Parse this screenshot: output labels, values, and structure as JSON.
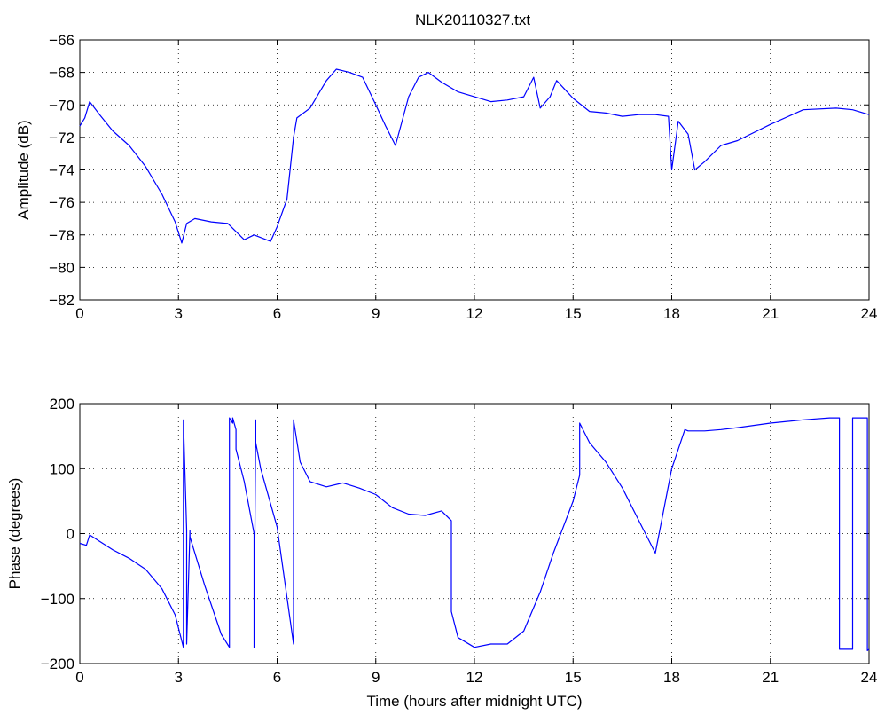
{
  "figure_title": "NLK20110327.txt",
  "chart_data": [
    {
      "type": "line",
      "title": "NLK20110327.txt",
      "xlabel": "",
      "ylabel": "Amplitude (dB)",
      "xlim": [
        0,
        24
      ],
      "ylim": [
        -82,
        -66
      ],
      "xticks": [
        0,
        3,
        6,
        9,
        12,
        15,
        18,
        21,
        24
      ],
      "yticks": [
        -82,
        -80,
        -78,
        -76,
        -74,
        -72,
        -70,
        -68,
        -66
      ],
      "grid": true,
      "line_color": "#0000ff",
      "series": [
        {
          "x": [
            0,
            0.15,
            0.3,
            0.6,
            1.0,
            1.5,
            2.0,
            2.5,
            2.9,
            3.1,
            3.25,
            3.5,
            4.0,
            4.5,
            5.0,
            5.3,
            5.8,
            6.0,
            6.3,
            6.5,
            6.6,
            7.0,
            7.5,
            7.8,
            8.2,
            8.6,
            9.0,
            9.3,
            9.6,
            9.8,
            10.0,
            10.3,
            10.6,
            11.0,
            11.5,
            12.0,
            12.5,
            13.0,
            13.5,
            13.8,
            14.0,
            14.3,
            14.5,
            15.0,
            15.5,
            16.0,
            16.5,
            17.0,
            17.5,
            17.9,
            18.0,
            18.2,
            18.5,
            18.7,
            19.0,
            19.5,
            20.0,
            21.0,
            22.0,
            23.0,
            23.5,
            24.0
          ],
          "y": [
            -71.3,
            -70.8,
            -69.8,
            -70.6,
            -71.6,
            -72.5,
            -73.8,
            -75.5,
            -77.2,
            -78.5,
            -77.3,
            -77.0,
            -77.2,
            -77.3,
            -78.3,
            -78.0,
            -78.4,
            -77.5,
            -75.8,
            -72.0,
            -70.8,
            -70.2,
            -68.5,
            -67.8,
            -68.0,
            -68.3,
            -70.0,
            -71.3,
            -72.5,
            -71.0,
            -69.5,
            -68.3,
            -68.0,
            -68.6,
            -69.2,
            -69.5,
            -69.8,
            -69.7,
            -69.5,
            -68.3,
            -70.2,
            -69.5,
            -68.5,
            -69.6,
            -70.4,
            -70.5,
            -70.7,
            -70.6,
            -70.6,
            -70.7,
            -74.0,
            -71.0,
            -71.8,
            -74.0,
            -73.5,
            -72.5,
            -72.2,
            -71.2,
            -70.3,
            -70.2,
            -70.3,
            -70.6
          ]
        }
      ]
    },
    {
      "type": "line",
      "title": "",
      "xlabel": "Time (hours after midnight UTC)",
      "ylabel": "Phase (degrees)",
      "xlim": [
        0,
        24
      ],
      "ylim": [
        -200,
        200
      ],
      "xticks": [
        0,
        3,
        6,
        9,
        12,
        15,
        18,
        21,
        24
      ],
      "yticks": [
        -200,
        -100,
        0,
        100,
        200
      ],
      "grid": true,
      "line_color": "#0000ff",
      "series": [
        {
          "x": [
            0,
            0.2,
            0.3,
            0.6,
            1.0,
            1.5,
            2.0,
            2.5,
            2.9,
            3.15,
            3.15,
            3.25,
            3.25,
            3.35,
            3.35,
            3.8,
            4.3,
            4.55,
            4.55,
            4.65,
            4.65,
            4.75,
            4.75,
            5.0,
            5.3,
            5.3,
            5.35,
            5.35,
            5.5,
            6.0,
            6.5,
            6.5,
            6.7,
            7.0,
            7.5,
            8.0,
            8.5,
            9.0,
            9.5,
            10.0,
            10.5,
            11.0,
            11.3,
            11.3,
            11.5,
            12.0,
            12.5,
            13.0,
            13.5,
            14.0,
            14.4,
            15.0,
            15.2,
            15.2,
            15.5,
            16.0,
            16.5,
            17.0,
            17.5,
            18.0,
            18.4,
            18.5,
            19.0,
            19.5,
            20.0,
            21.0,
            22.0,
            22.8,
            23.1,
            23.1,
            23.5,
            23.5,
            23.95,
            23.95,
            24.0
          ],
          "y": [
            -15,
            -18,
            -2,
            -12,
            -25,
            -38,
            -55,
            -85,
            -125,
            -175,
            175,
            5,
            -170,
            5,
            -5,
            -80,
            -155,
            -175,
            178,
            170,
            178,
            160,
            130,
            80,
            0,
            -175,
            175,
            140,
            100,
            10,
            -170,
            175,
            110,
            80,
            72,
            78,
            70,
            60,
            40,
            30,
            28,
            35,
            20,
            -120,
            -160,
            -175,
            -170,
            -170,
            -150,
            -90,
            -30,
            50,
            90,
            170,
            140,
            110,
            70,
            20,
            -30,
            100,
            160,
            158,
            158,
            160,
            163,
            170,
            175,
            178,
            178,
            -178,
            -178,
            178,
            178,
            -180,
            -178
          ]
        }
      ]
    }
  ]
}
